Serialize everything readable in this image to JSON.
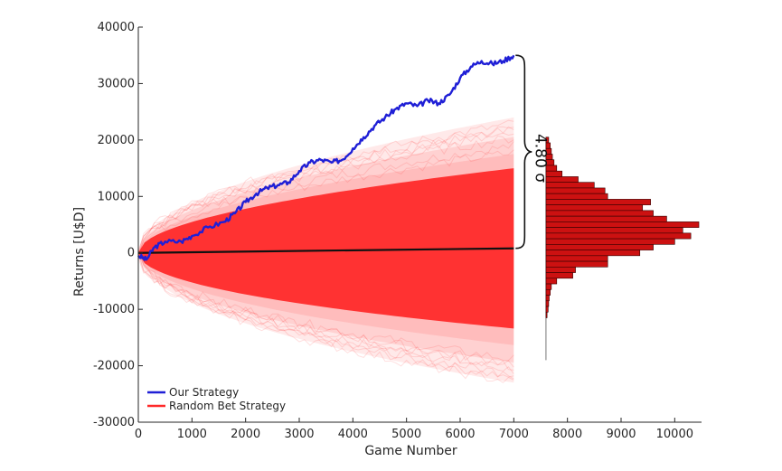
{
  "chart_data": {
    "type": "line",
    "xlabel": "Game Number",
    "ylabel": "Returns [U$D]",
    "xlim": [
      0,
      10500
    ],
    "ylim": [
      -30000,
      40000
    ],
    "x_ticks": [
      "0",
      "1000",
      "2000",
      "3000",
      "4000",
      "5000",
      "6000",
      "7000",
      "8000",
      "9000",
      "10000"
    ],
    "y_ticks": [
      "-30000",
      "-20000",
      "-10000",
      "0",
      "10000",
      "20000",
      "30000",
      "40000"
    ],
    "legend": {
      "position": "bottom-left"
    },
    "series": [
      {
        "name": "Our Strategy",
        "color": "#1f1fd6",
        "points": [
          [
            0,
            -500
          ],
          [
            150,
            -1200
          ],
          [
            300,
            1000
          ],
          [
            500,
            2000
          ],
          [
            800,
            2000
          ],
          [
            1000,
            3000
          ],
          [
            1300,
            4500
          ],
          [
            1600,
            5500
          ],
          [
            1800,
            7000
          ],
          [
            2000,
            9000
          ],
          [
            2200,
            10500
          ],
          [
            2400,
            11500
          ],
          [
            2600,
            12000
          ],
          [
            2800,
            12500
          ],
          [
            3000,
            14500
          ],
          [
            3200,
            16000
          ],
          [
            3400,
            16500
          ],
          [
            3600,
            16000
          ],
          [
            3800,
            16500
          ],
          [
            4000,
            18500
          ],
          [
            4200,
            20500
          ],
          [
            4400,
            22500
          ],
          [
            4600,
            24000
          ],
          [
            4800,
            25500
          ],
          [
            5000,
            26500
          ],
          [
            5200,
            26000
          ],
          [
            5400,
            27000
          ],
          [
            5600,
            26500
          ],
          [
            5800,
            28000
          ],
          [
            6000,
            31000
          ],
          [
            6200,
            33000
          ],
          [
            6400,
            34000
          ],
          [
            6600,
            33500
          ],
          [
            6800,
            34000
          ],
          [
            7000,
            35000
          ]
        ]
      },
      {
        "name": "Random Bet Strategy",
        "color": "#ff2a2a",
        "mean_points": [
          [
            0,
            0
          ],
          [
            7000,
            800
          ]
        ],
        "band_1sigma_end": 15000,
        "band_max_end": 24000,
        "band_min_end": -23000
      }
    ],
    "annotation": {
      "text": "4.80 σ",
      "from_y": 800,
      "to_y": 35000,
      "x": 7000
    },
    "histogram": {
      "orientation": "horizontal",
      "baseline_x": 7600,
      "color": "#cc1111",
      "bins": [
        {
          "y": 20000,
          "count": 7650
        },
        {
          "y": 19000,
          "count": 7680
        },
        {
          "y": 18000,
          "count": 7700
        },
        {
          "y": 17000,
          "count": 7720
        },
        {
          "y": 16000,
          "count": 7750
        },
        {
          "y": 15000,
          "count": 7800
        },
        {
          "y": 14000,
          "count": 7900
        },
        {
          "y": 13000,
          "count": 8200
        },
        {
          "y": 12000,
          "count": 8500
        },
        {
          "y": 11000,
          "count": 8700
        },
        {
          "y": 10000,
          "count": 8750
        },
        {
          "y": 9000,
          "count": 9550
        },
        {
          "y": 8000,
          "count": 9400
        },
        {
          "y": 7000,
          "count": 9600
        },
        {
          "y": 6000,
          "count": 9850
        },
        {
          "y": 5000,
          "count": 10450
        },
        {
          "y": 4000,
          "count": 10150
        },
        {
          "y": 3000,
          "count": 10300
        },
        {
          "y": 2000,
          "count": 10000
        },
        {
          "y": 1000,
          "count": 9600
        },
        {
          "y": 0,
          "count": 9350
        },
        {
          "y": -1000,
          "count": 8750
        },
        {
          "y": -2000,
          "count": 8750
        },
        {
          "y": -3000,
          "count": 8150
        },
        {
          "y": -4000,
          "count": 8100
        },
        {
          "y": -5000,
          "count": 7800
        },
        {
          "y": -6000,
          "count": 7700
        },
        {
          "y": -7000,
          "count": 7680
        },
        {
          "y": -8000,
          "count": 7660
        },
        {
          "y": -9000,
          "count": 7650
        },
        {
          "y": -10000,
          "count": 7640
        },
        {
          "y": -11000,
          "count": 7620
        }
      ]
    }
  }
}
